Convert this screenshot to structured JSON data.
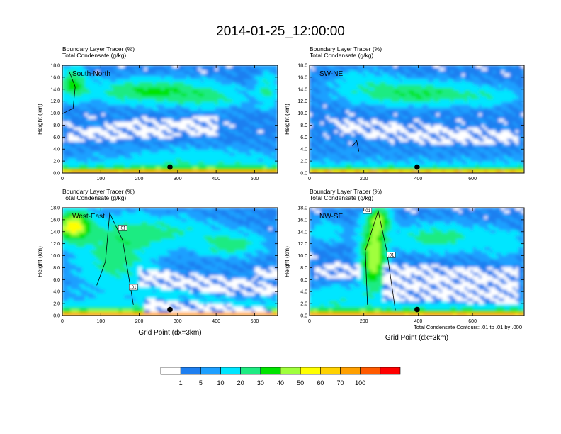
{
  "title": "2014-01-25_12:00:00",
  "footnote": "Total Condensate Contours: .01 to .01 by .000",
  "colorbar": {
    "labels": [
      "1",
      "5",
      "10",
      "20",
      "30",
      "40",
      "50",
      "60",
      "70",
      "100"
    ],
    "colors": [
      "#ffffff",
      "#1e7ff0",
      "#1ea0ff",
      "#00e6ff",
      "#1eeb82",
      "#00e400",
      "#a0ff3c",
      "#ffff00",
      "#ffd200",
      "#ffa000",
      "#ff5a00",
      "#ff0000"
    ]
  },
  "chart_data": [
    {
      "type": "heatmap",
      "title_lines": [
        "Boundary Layer Tracer   (%)",
        "Total Condensate   (g/kg)"
      ],
      "label": "South-North",
      "ylabel": "Height (km)",
      "xlabel": "",
      "xlim": [
        0,
        560
      ],
      "ylim": [
        0,
        18
      ],
      "xticks": [
        "0",
        "100",
        "200",
        "300",
        "400",
        "500"
      ],
      "yticks": [
        "0.0",
        "2.0",
        "4.0",
        "6.0",
        "8.0",
        "10.0",
        "12.0",
        "14.0",
        "16.0",
        "18.0"
      ],
      "marker": {
        "x": 280,
        "y": 1.0
      }
    },
    {
      "type": "heatmap",
      "title_lines": [
        "Boundary Layer Tracer   (%)",
        "Total Condensate   (g/kg)"
      ],
      "label": "SW-NE",
      "ylabel": "Height (km)",
      "xlabel": "",
      "xlim": [
        0,
        790
      ],
      "ylim": [
        0,
        18
      ],
      "xticks": [
        "0",
        "200",
        "400",
        "600"
      ],
      "yticks": [
        "0.0",
        "2.0",
        "4.0",
        "6.0",
        "8.0",
        "10.0",
        "12.0",
        "14.0",
        "16.0",
        "18.0"
      ],
      "marker": {
        "x": 396,
        "y": 1.0
      }
    },
    {
      "type": "heatmap",
      "title_lines": [
        "Boundary Layer Tracer   (%)",
        "Total Condensate   (g/kg)"
      ],
      "label": "West-East",
      "ylabel": "Height (km)",
      "xlabel": "Grid Point (dx=3km)",
      "xlim": [
        0,
        560
      ],
      "ylim": [
        0,
        18
      ],
      "xticks": [
        "0",
        "100",
        "200",
        "300",
        "400",
        "500"
      ],
      "yticks": [
        "0.0",
        "2.0",
        "4.0",
        "6.0",
        "8.0",
        "10.0",
        "12.0",
        "14.0",
        "16.0",
        "18.0"
      ],
      "marker": {
        "x": 280,
        "y": 1.0
      },
      "contour_labels": [
        ".01",
        ".01"
      ]
    },
    {
      "type": "heatmap",
      "title_lines": [
        "Boundary Layer Tracer   (%)",
        "Total Condensate   (g/kg)"
      ],
      "label": "NW-SE",
      "ylabel": "Height (km)",
      "xlabel": "Grid Point (dx=3km)",
      "xlim": [
        0,
        790
      ],
      "ylim": [
        0,
        18
      ],
      "xticks": [
        "0",
        "200",
        "400",
        "600"
      ],
      "yticks": [
        "0.0",
        "2.0",
        "4.0",
        "6.0",
        "8.0",
        "10.0",
        "12.0",
        "14.0",
        "16.0",
        "18.0"
      ],
      "marker": {
        "x": 396,
        "y": 1.0
      },
      "contour_labels": [
        ".01",
        ".01"
      ]
    }
  ]
}
